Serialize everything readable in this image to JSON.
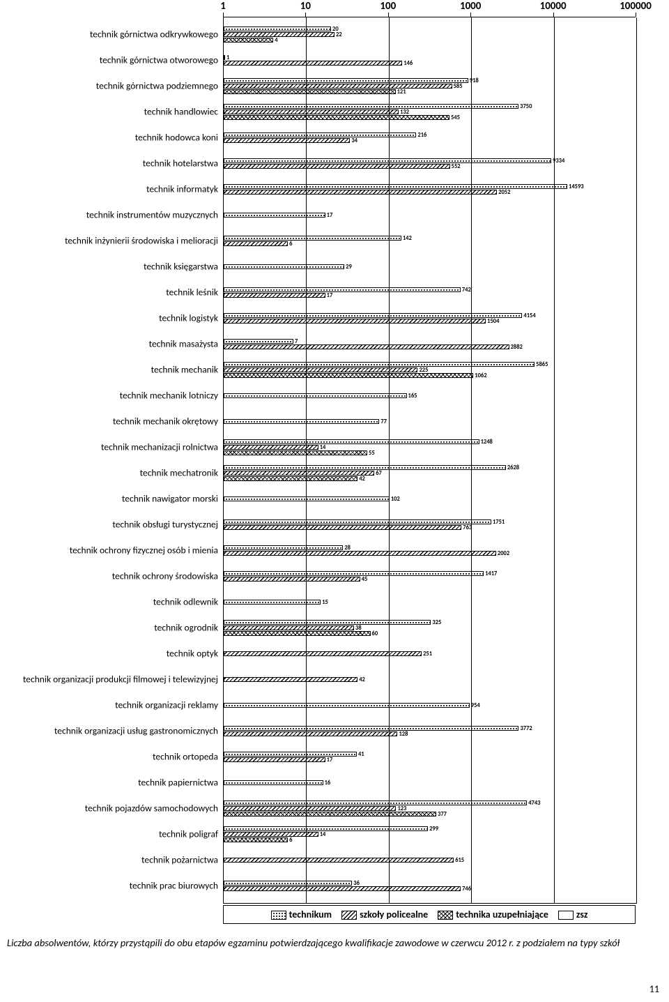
{
  "chart": {
    "type": "bar",
    "orientation": "horizontal",
    "scale": "log",
    "xmin": 1,
    "xmax": 100000,
    "ticks": [
      1,
      10,
      100,
      1000,
      10000,
      100000
    ],
    "tick_labels": [
      "1",
      "10",
      "100",
      "1000",
      "10000",
      "100000"
    ],
    "series": [
      {
        "key": "technikum",
        "label": "technikum",
        "pattern": "p-dots"
      },
      {
        "key": "policealne",
        "label": "szkoły policealne",
        "pattern": "p-diag"
      },
      {
        "key": "uzup",
        "label": "technika uzupełniające",
        "pattern": "p-cross"
      },
      {
        "key": "zsz",
        "label": "zsz",
        "pattern": "p-blank"
      }
    ],
    "categories": [
      {
        "label": "technik górnictwa odkrywkowego",
        "values": {
          "technikum": 20,
          "policealne": 22,
          "uzup": 4
        }
      },
      {
        "label": "technik górnictwa otworowego",
        "values": {
          "technikum": 1,
          "policealne": 146
        }
      },
      {
        "label": "technik górnictwa podziemnego",
        "values": {
          "technikum": 918,
          "policealne": 585,
          "uzup": 121
        }
      },
      {
        "label": "technik handlowiec",
        "values": {
          "technikum": 3750,
          "policealne": 132,
          "uzup": 545
        }
      },
      {
        "label": "technik hodowca koni",
        "values": {
          "technikum": 216,
          "policealne": 34
        }
      },
      {
        "label": "technik hotelarstwa",
        "values": {
          "technikum": 9334,
          "policealne": 552
        }
      },
      {
        "label": "technik informatyk",
        "values": {
          "technikum": 14593,
          "policealne": 2052
        }
      },
      {
        "label": "technik instrumentów muzycznych",
        "values": {
          "technikum": 17
        }
      },
      {
        "label": "technik inżynierii środowiska i melioracji",
        "values": {
          "technikum": 142,
          "policealne": 6
        }
      },
      {
        "label": "technik księgarstwa",
        "values": {
          "technikum": 29
        }
      },
      {
        "label": "technik leśnik",
        "values": {
          "technikum": 742,
          "policealne": 17
        }
      },
      {
        "label": "technik logistyk",
        "values": {
          "technikum": 4154,
          "policealne": 1504
        }
      },
      {
        "label": "technik masażysta",
        "values": {
          "technikum": 7,
          "policealne": 2882
        }
      },
      {
        "label": "technik mechanik",
        "values": {
          "technikum": 5865,
          "policealne": 225,
          "uzup": 1062
        }
      },
      {
        "label": "technik mechanik lotniczy",
        "values": {
          "technikum": 165
        }
      },
      {
        "label": "technik mechanik okrętowy",
        "values": {
          "technikum": 77
        }
      },
      {
        "label": "technik mechanizacji rolnictwa",
        "values": {
          "technikum": 1248,
          "policealne": 14,
          "uzup": 55
        }
      },
      {
        "label": "technik mechatronik",
        "values": {
          "technikum": 2628,
          "policealne": 67,
          "uzup": 42
        }
      },
      {
        "label": "technik nawigator morski",
        "values": {
          "technikum": 102
        }
      },
      {
        "label": "technik obsługi turystycznej",
        "values": {
          "technikum": 1751,
          "policealne": 763
        }
      },
      {
        "label": "technik ochrony fizycznej osób i mienia",
        "values": {
          "technikum": 28,
          "policealne": 2002
        }
      },
      {
        "label": "technik ochrony środowiska",
        "values": {
          "technikum": 1417,
          "policealne": 45
        }
      },
      {
        "label": "technik odlewnik",
        "values": {
          "technikum": 15
        }
      },
      {
        "label": "technik ogrodnik",
        "values": {
          "technikum": 325,
          "policealne": 38,
          "uzup": 60
        }
      },
      {
        "label": "technik optyk",
        "values": {
          "policealne": 251
        }
      },
      {
        "label": "technik organizacji produkcji filmowej i telewizyjnej",
        "values": {
          "policealne": 42
        }
      },
      {
        "label": "technik organizacji reklamy",
        "values": {
          "technikum": 954
        }
      },
      {
        "label": "technik organizacji usług gastronomicznych",
        "values": {
          "technikum": 3772,
          "policealne": 128
        }
      },
      {
        "label": "technik ortopeda",
        "values": {
          "technikum": 41,
          "policealne": 17
        }
      },
      {
        "label": "technik papiernictwa",
        "values": {
          "technikum": 16
        }
      },
      {
        "label": "technik pojazdów samochodowych",
        "values": {
          "technikum": 4743,
          "policealne": 123,
          "uzup": 377
        }
      },
      {
        "label": "technik poligraf",
        "values": {
          "technikum": 299,
          "policealne": 14,
          "uzup": 6
        }
      },
      {
        "label": "technik pożarnictwa",
        "values": {
          "policealne": 615
        }
      },
      {
        "label": "technik prac biurowych",
        "values": {
          "technikum": 36,
          "policealne": 746
        }
      }
    ]
  },
  "legend_prefix": "",
  "caption": "Liczba absolwentów, którzy przystąpili do obu etapów egzaminu potwierdzającego kwalifikacje zawodowe w czerwcu 2012 r. z podziałem na typy szkół",
  "page_number": "11"
}
